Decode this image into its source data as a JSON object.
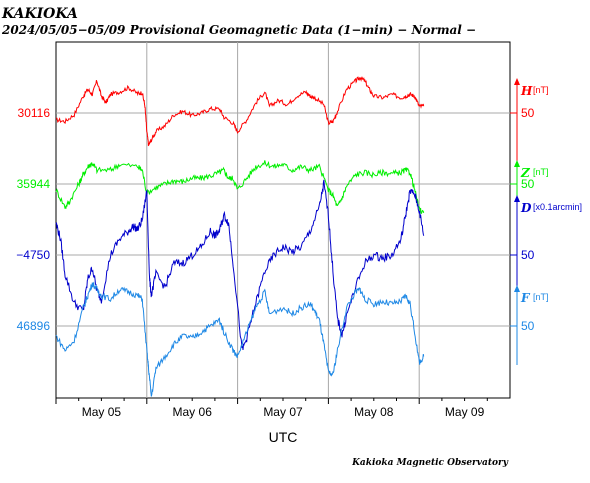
{
  "header": {
    "station": "KAKIOKA",
    "subtitle": "2024/05/05−05/09  Provisional Geomagnetic Data (1−min)  − Normal −"
  },
  "footer": {
    "xlabel": "UTC",
    "credit": "Kakioka Magnetic Observatory"
  },
  "chart_data": {
    "type": "line",
    "title": "2024/05/05−05/09  Provisional Geomagnetic Data (1−min)  − Normal −",
    "xlabel": "UTC",
    "x_ticks": [
      "May 05",
      "May 06",
      "May 07",
      "May 08",
      "May 09"
    ],
    "xlim_days": [
      0,
      5
    ],
    "grid": true,
    "series": [
      {
        "name": "H",
        "unit": "[nT]",
        "color": "#ff0000",
        "baseline_label": "30116",
        "scale_label": "50",
        "offset_range": [
          -85,
          65
        ],
        "points": [
          [
            0.0,
            -8
          ],
          [
            0.1,
            -10
          ],
          [
            0.2,
            -2
          ],
          [
            0.3,
            20
          ],
          [
            0.35,
            28
          ],
          [
            0.4,
            22
          ],
          [
            0.45,
            38
          ],
          [
            0.5,
            20
          ],
          [
            0.55,
            12
          ],
          [
            0.6,
            22
          ],
          [
            0.7,
            25
          ],
          [
            0.8,
            30
          ],
          [
            0.9,
            23
          ],
          [
            0.95,
            24
          ],
          [
            0.98,
            8
          ],
          [
            1.0,
            -22
          ],
          [
            1.02,
            -38
          ],
          [
            1.05,
            -32
          ],
          [
            1.1,
            -22
          ],
          [
            1.2,
            -15
          ],
          [
            1.3,
            -2
          ],
          [
            1.4,
            2
          ],
          [
            1.5,
            -3
          ],
          [
            1.6,
            0
          ],
          [
            1.7,
            5
          ],
          [
            1.8,
            5
          ],
          [
            1.85,
            -5
          ],
          [
            1.95,
            -12
          ],
          [
            2.0,
            -22
          ],
          [
            2.1,
            -8
          ],
          [
            2.2,
            12
          ],
          [
            2.3,
            25
          ],
          [
            2.35,
            8
          ],
          [
            2.45,
            15
          ],
          [
            2.55,
            10
          ],
          [
            2.65,
            20
          ],
          [
            2.75,
            25
          ],
          [
            2.8,
            20
          ],
          [
            2.85,
            18
          ],
          [
            2.95,
            10
          ],
          [
            3.0,
            -12
          ],
          [
            3.05,
            -10
          ],
          [
            3.1,
            2
          ],
          [
            3.2,
            28
          ],
          [
            3.3,
            38
          ],
          [
            3.35,
            42
          ],
          [
            3.4,
            38
          ],
          [
            3.45,
            28
          ],
          [
            3.5,
            20
          ],
          [
            3.6,
            18
          ],
          [
            3.7,
            22
          ],
          [
            3.8,
            18
          ],
          [
            3.85,
            20
          ],
          [
            3.9,
            22
          ],
          [
            3.95,
            20
          ],
          [
            4.0,
            8
          ],
          [
            4.05,
            8
          ]
        ]
      },
      {
        "name": "Z",
        "unit": "[nT]",
        "color": "#00ee00",
        "baseline_label": "35944",
        "scale_label": "50",
        "offset_range": [
          -40,
          38
        ],
        "points": [
          [
            0.0,
            -5
          ],
          [
            0.1,
            -20
          ],
          [
            0.15,
            -15
          ],
          [
            0.25,
            0
          ],
          [
            0.3,
            8
          ],
          [
            0.35,
            15
          ],
          [
            0.4,
            18
          ],
          [
            0.45,
            12
          ],
          [
            0.6,
            12
          ],
          [
            0.7,
            17
          ],
          [
            0.9,
            15
          ],
          [
            0.95,
            12
          ],
          [
            1.0,
            -8
          ],
          [
            1.1,
            -3
          ],
          [
            1.2,
            0
          ],
          [
            1.3,
            3
          ],
          [
            1.4,
            2
          ],
          [
            1.5,
            5
          ],
          [
            1.6,
            5
          ],
          [
            1.7,
            7
          ],
          [
            1.8,
            10
          ],
          [
            1.85,
            12
          ],
          [
            1.9,
            5
          ],
          [
            1.95,
            5
          ],
          [
            2.0,
            -5
          ],
          [
            2.1,
            5
          ],
          [
            2.2,
            15
          ],
          [
            2.3,
            18
          ],
          [
            2.4,
            15
          ],
          [
            2.5,
            17
          ],
          [
            2.6,
            12
          ],
          [
            2.7,
            15
          ],
          [
            2.8,
            12
          ],
          [
            2.9,
            15
          ],
          [
            3.0,
            -5
          ],
          [
            3.05,
            -10
          ],
          [
            3.1,
            -20
          ],
          [
            3.15,
            -12
          ],
          [
            3.2,
            -2
          ],
          [
            3.3,
            8
          ],
          [
            3.4,
            10
          ],
          [
            3.5,
            8
          ],
          [
            3.6,
            10
          ],
          [
            3.7,
            9
          ],
          [
            3.8,
            10
          ],
          [
            3.85,
            12
          ],
          [
            3.9,
            10
          ],
          [
            3.95,
            -5
          ],
          [
            4.0,
            -22
          ],
          [
            4.05,
            -25
          ]
        ]
      },
      {
        "name": "D",
        "unit": "[x0.1arcmin]",
        "color": "#0000cc",
        "baseline_label": "−4750",
        "scale_label": "50",
        "offset_range": [
          -60,
          50
        ],
        "points": [
          [
            0.0,
            20
          ],
          [
            0.05,
            10
          ],
          [
            0.1,
            -12
          ],
          [
            0.2,
            -30
          ],
          [
            0.3,
            -35
          ],
          [
            0.35,
            -15
          ],
          [
            0.4,
            -8
          ],
          [
            0.45,
            -22
          ],
          [
            0.5,
            -28
          ],
          [
            0.6,
            0
          ],
          [
            0.7,
            10
          ],
          [
            0.8,
            15
          ],
          [
            0.85,
            18
          ],
          [
            0.9,
            16
          ],
          [
            0.95,
            22
          ],
          [
            1.0,
            40
          ],
          [
            1.03,
            -15
          ],
          [
            1.05,
            -25
          ],
          [
            1.1,
            -12
          ],
          [
            1.2,
            -20
          ],
          [
            1.3,
            -5
          ],
          [
            1.4,
            -5
          ],
          [
            1.5,
            0
          ],
          [
            1.6,
            5
          ],
          [
            1.7,
            15
          ],
          [
            1.75,
            12
          ],
          [
            1.8,
            15
          ],
          [
            1.85,
            25
          ],
          [
            1.9,
            20
          ],
          [
            1.95,
            -5
          ],
          [
            2.05,
            -60
          ],
          [
            2.1,
            -52
          ],
          [
            2.2,
            -30
          ],
          [
            2.3,
            -10
          ],
          [
            2.4,
            0
          ],
          [
            2.5,
            5
          ],
          [
            2.6,
            2
          ],
          [
            2.7,
            5
          ],
          [
            2.8,
            15
          ],
          [
            2.9,
            30
          ],
          [
            2.95,
            45
          ],
          [
            3.0,
            25
          ],
          [
            3.05,
            -10
          ],
          [
            3.1,
            -40
          ],
          [
            3.15,
            -50
          ],
          [
            3.2,
            -38
          ],
          [
            3.3,
            -20
          ],
          [
            3.4,
            -5
          ],
          [
            3.5,
            0
          ],
          [
            3.6,
            -2
          ],
          [
            3.7,
            0
          ],
          [
            3.8,
            10
          ],
          [
            3.85,
            25
          ],
          [
            3.9,
            40
          ],
          [
            3.95,
            38
          ],
          [
            4.0,
            28
          ],
          [
            4.05,
            12
          ]
        ]
      },
      {
        "name": "F",
        "unit": "[nT]",
        "color": "#1e88e5",
        "baseline_label": "46896",
        "scale_label": "50",
        "offset_range": [
          -65,
          50
        ],
        "points": [
          [
            0.0,
            -8
          ],
          [
            0.1,
            -20
          ],
          [
            0.2,
            -12
          ],
          [
            0.3,
            15
          ],
          [
            0.35,
            25
          ],
          [
            0.4,
            35
          ],
          [
            0.45,
            30
          ],
          [
            0.5,
            25
          ],
          [
            0.6,
            22
          ],
          [
            0.7,
            30
          ],
          [
            0.8,
            28
          ],
          [
            0.9,
            25
          ],
          [
            0.95,
            22
          ],
          [
            1.0,
            -20
          ],
          [
            1.02,
            -35
          ],
          [
            1.05,
            -58
          ],
          [
            1.1,
            -35
          ],
          [
            1.2,
            -25
          ],
          [
            1.3,
            -15
          ],
          [
            1.4,
            -8
          ],
          [
            1.5,
            -10
          ],
          [
            1.6,
            -5
          ],
          [
            1.7,
            0
          ],
          [
            1.8,
            5
          ],
          [
            1.85,
            -5
          ],
          [
            1.95,
            -20
          ],
          [
            2.0,
            -25
          ],
          [
            2.1,
            -5
          ],
          [
            2.2,
            15
          ],
          [
            2.3,
            28
          ],
          [
            2.35,
            10
          ],
          [
            2.5,
            15
          ],
          [
            2.6,
            10
          ],
          [
            2.7,
            15
          ],
          [
            2.8,
            18
          ],
          [
            2.85,
            12
          ],
          [
            2.9,
            5
          ],
          [
            2.95,
            -15
          ],
          [
            3.0,
            -38
          ],
          [
            3.05,
            -40
          ],
          [
            3.1,
            -20
          ],
          [
            3.2,
            15
          ],
          [
            3.3,
            28
          ],
          [
            3.35,
            30
          ],
          [
            3.4,
            22
          ],
          [
            3.5,
            18
          ],
          [
            3.6,
            20
          ],
          [
            3.7,
            18
          ],
          [
            3.8,
            20
          ],
          [
            3.85,
            25
          ],
          [
            3.9,
            18
          ],
          [
            3.95,
            -5
          ],
          [
            4.0,
            -30
          ],
          [
            4.05,
            -25
          ]
        ]
      }
    ]
  }
}
